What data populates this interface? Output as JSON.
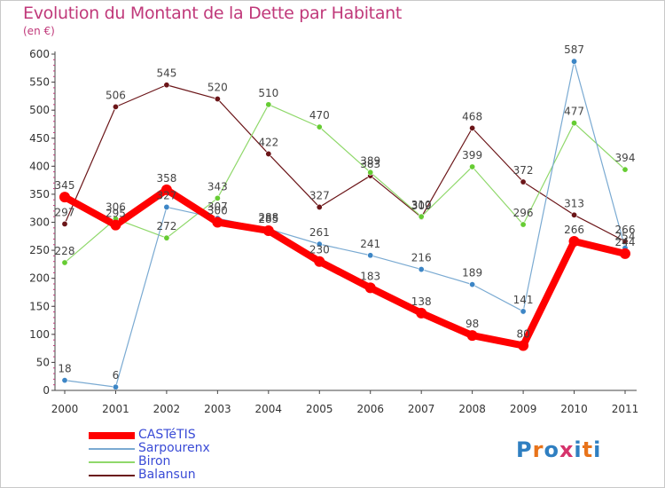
{
  "header": {
    "title": "Evolution du Montant de la Dette par Habitant",
    "subtitle": "(en €)"
  },
  "logo": {
    "text": "Proxiti"
  },
  "chart_data": {
    "type": "line",
    "title": "Evolution du Montant de la Dette par Habitant",
    "ylabel": "(en €)",
    "xlabel": "",
    "x": [
      "2000",
      "2001",
      "2002",
      "2003",
      "2004",
      "2005",
      "2006",
      "2007",
      "2008",
      "2009",
      "2010",
      "2011"
    ],
    "ylim": [
      0,
      600
    ],
    "yticks": [
      0,
      50,
      100,
      150,
      200,
      250,
      300,
      350,
      400,
      450,
      500,
      550,
      600
    ],
    "grid": false,
    "legend": "bottom-left",
    "series": [
      {
        "name": "Balansun",
        "color": "#6b1518",
        "marker": "#6b1518",
        "width": 1.2,
        "values": [
          297,
          506,
          545,
          520,
          422,
          327,
          383,
          309,
          468,
          372,
          313,
          266
        ]
      },
      {
        "name": "Biron",
        "color": "#8fd86a",
        "marker": "#66cc33",
        "width": 1.2,
        "values": [
          228,
          306,
          272,
          343,
          510,
          470,
          389,
          310,
          399,
          296,
          477,
          394
        ]
      },
      {
        "name": "Sarpourenx",
        "color": "#7aaad2",
        "marker": "#3d86c6",
        "width": 1.2,
        "values": [
          18,
          6,
          327,
          307,
          288,
          261,
          241,
          216,
          189,
          141,
          587,
          254
        ]
      },
      {
        "name": "CASTéTIS",
        "color": "#ff0000",
        "marker": "#ff0000",
        "width": 8,
        "values": [
          345,
          295,
          358,
          300,
          285,
          230,
          183,
          138,
          98,
          80,
          266,
          244
        ]
      }
    ],
    "legend_order": [
      "CASTéTIS",
      "Sarpourenx",
      "Biron",
      "Balansun"
    ]
  }
}
